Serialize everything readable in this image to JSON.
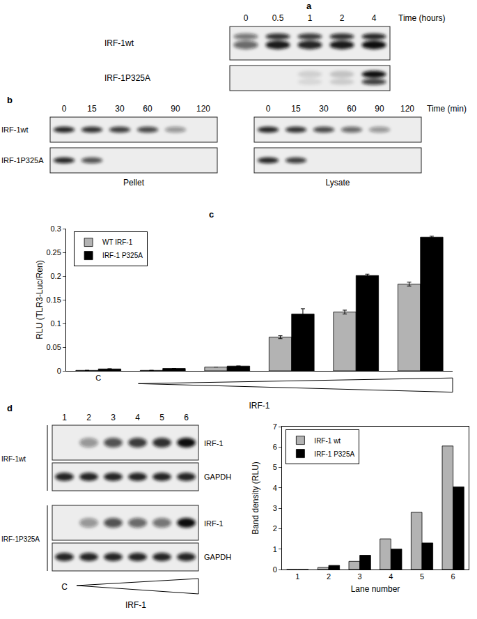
{
  "panels": {
    "a": {
      "label": "a",
      "time_title": "Time (hours)",
      "times": [
        "0",
        "0.5",
        "1",
        "2",
        "4"
      ],
      "rows": [
        "IRF-1wt",
        "IRF-1P325A"
      ]
    },
    "b": {
      "label": "b",
      "time_title": "Time (min)",
      "times": [
        "0",
        "15",
        "30",
        "60",
        "90",
        "120"
      ],
      "rows": [
        "IRF-1wt",
        "IRF-1P325A"
      ],
      "fractions": [
        "Pellet",
        "Lysate"
      ]
    },
    "c": {
      "label": "c"
    },
    "d": {
      "label": "d",
      "lanes": [
        "1",
        "2",
        "3",
        "4",
        "5",
        "6"
      ],
      "groups": [
        "IRF-1wt",
        "IRF-1P325A"
      ],
      "bands": [
        "IRF-1",
        "GAPDH"
      ],
      "control": "C",
      "gradient_label": "IRF-1"
    }
  },
  "chart_data": [
    {
      "type": "bar",
      "y_label": "RLU (TLR3-Luc/Ren)",
      "x_label": "IRF-1",
      "categories": [
        "C",
        null,
        null,
        null,
        null,
        null
      ],
      "series": [
        {
          "name": "WT IRF-1",
          "color": "#b3b3b3",
          "values": [
            0.001,
            0.001,
            0.008,
            0.071,
            0.124,
            0.183
          ],
          "errors": [
            0,
            0,
            0,
            0.003,
            0.004,
            0.004
          ]
        },
        {
          "name": "IRF-1 P325A",
          "color": "#000000",
          "values": [
            0.004,
            0.005,
            0.01,
            0.12,
            0.201,
            0.282
          ],
          "errors": [
            0.0005,
            0,
            0,
            0.011,
            0.003,
            0.002
          ]
        }
      ],
      "ylim": [
        0,
        0.3
      ],
      "yticks": [
        0,
        0.05,
        0.1,
        0.15,
        0.2,
        0.25,
        0.3
      ],
      "legend": "top-left",
      "grid": false
    },
    {
      "type": "bar",
      "y_label": "Band density (RLU)",
      "x_label": "Lane number",
      "categories": [
        "1",
        "2",
        "3",
        "4",
        "5",
        "6"
      ],
      "series": [
        {
          "name": "IRF-1 wt",
          "color": "#b3b3b3",
          "values": [
            0,
            0.1,
            0.4,
            1.5,
            2.8,
            6.05
          ]
        },
        {
          "name": "IRF-1 P325A",
          "color": "#000000",
          "values": [
            0,
            0.2,
            0.7,
            1.0,
            1.3,
            4.05
          ]
        }
      ],
      "ylim": [
        0,
        7
      ],
      "yticks": [
        0,
        1,
        2,
        3,
        4,
        5,
        6,
        7
      ],
      "legend": "top-left",
      "grid": false
    }
  ]
}
